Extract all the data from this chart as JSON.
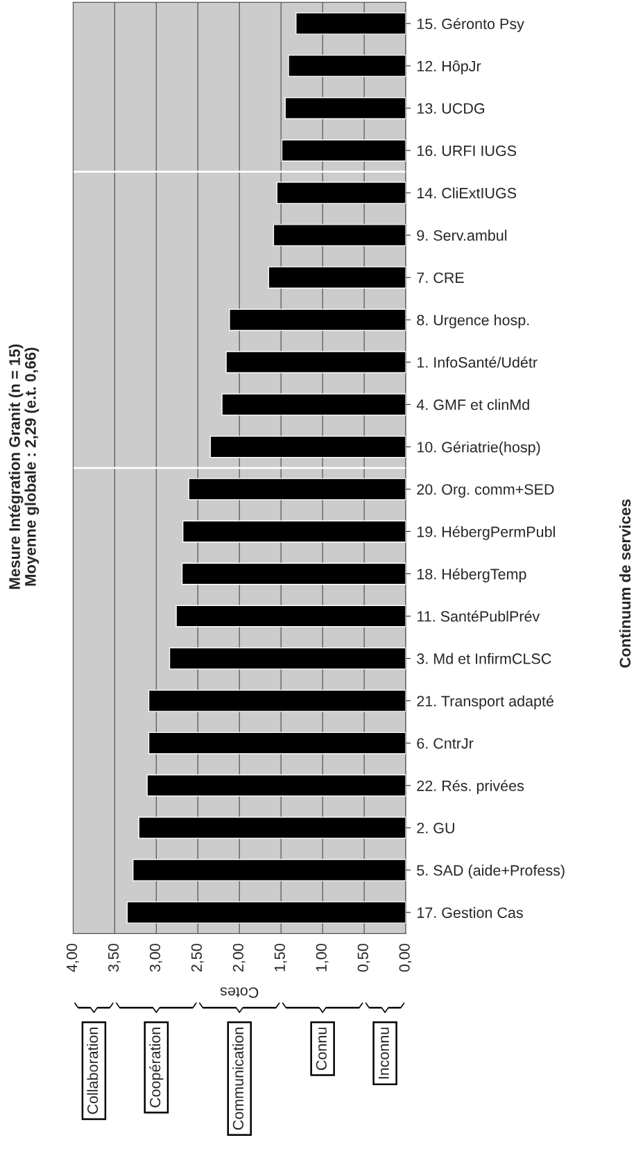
{
  "chart_data": {
    "type": "bar",
    "orientation": "horizontal",
    "title": "Mesure Intégration Granit (n = 15)",
    "subtitle": "Moyenne globale : 2,29 (e.t. 0,66)",
    "xlabel": "Cotes",
    "ylabel": "Continuum de services",
    "categories": [
      "15. Géronto Psy",
      "12. HôpJr",
      "13. UCDG",
      "16. URFI IUGS",
      "14. CliExtIUGS",
      "9. Serv.ambul",
      "7. CRE",
      "8. Urgence hosp.",
      "1. InfoSanté/Udétr",
      "4. GMF et clinMd",
      "10. Gériatrie(hosp)",
      "20. Org. comm+SED",
      "19. HébergPermPubl",
      "18. HébergTemp",
      "11. SantéPublPrév",
      "3. Md et InfirmCLSC",
      "21. Transport adapté",
      "6. CntrJr",
      "22. Rés. privées",
      "2. GU",
      "5. SAD (aide+Profess)",
      "17. Gestion Cas"
    ],
    "values": [
      1.32,
      1.41,
      1.45,
      1.49,
      1.55,
      1.59,
      1.65,
      2.12,
      2.16,
      2.21,
      2.35,
      2.61,
      2.68,
      2.69,
      2.76,
      2.84,
      3.09,
      3.09,
      3.11,
      3.21,
      3.28,
      3.35
    ],
    "color": "#000000",
    "xlim": [
      4,
      0
    ],
    "xticks": [
      {
        "value": 4,
        "label": "4,00"
      },
      {
        "value": 3.5,
        "label": "3,50"
      },
      {
        "value": 3,
        "label": "3,00"
      },
      {
        "value": 2.5,
        "label": "2,50"
      },
      {
        "value": 2,
        "label": "2,00"
      },
      {
        "value": 1.5,
        "label": "1,50"
      },
      {
        "value": 1,
        "label": "1,00"
      },
      {
        "value": 0.5,
        "label": "0,50"
      },
      {
        "value": 0,
        "label": "0,00"
      }
    ],
    "grid": "x",
    "annotations": [
      "Collaboration",
      "Coopération",
      "Communication",
      "Connu",
      "Inconnu"
    ]
  }
}
